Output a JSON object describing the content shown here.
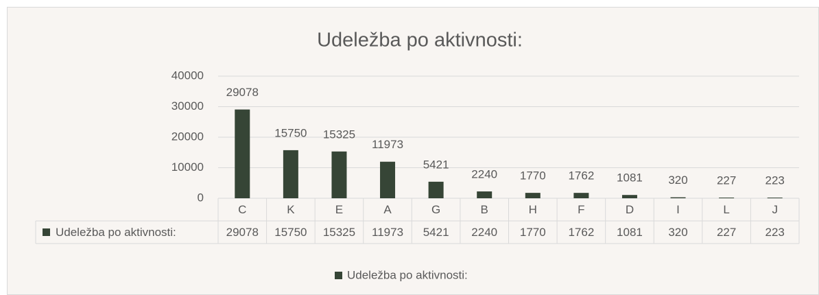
{
  "chart_data": {
    "type": "bar",
    "title": "Udeležba po aktivnosti:",
    "categories": [
      "C",
      "K",
      "E",
      "A",
      "G",
      "B",
      "H",
      "F",
      "D",
      "I",
      "L",
      "J"
    ],
    "series": [
      {
        "name": "Udeležba po aktivnosti:",
        "color": "#364536",
        "values": [
          29078,
          15750,
          15325,
          11973,
          5421,
          2240,
          1770,
          1762,
          1081,
          320,
          227,
          223
        ]
      }
    ],
    "ylim": [
      0,
      40000
    ],
    "yticks": [
      0,
      10000,
      20000,
      30000,
      40000
    ],
    "grid": true,
    "data_labels": true,
    "data_table": true,
    "legend": "bottom"
  }
}
